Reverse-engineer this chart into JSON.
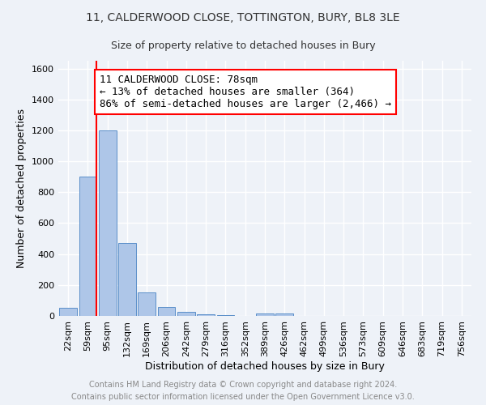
{
  "title_line1": "11, CALDERWOOD CLOSE, TOTTINGTON, BURY, BL8 3LE",
  "title_line2": "Size of property relative to detached houses in Bury",
  "xlabel": "Distribution of detached houses by size in Bury",
  "ylabel": "Number of detached properties",
  "categories": [
    "22sqm",
    "59sqm",
    "95sqm",
    "132sqm",
    "169sqm",
    "206sqm",
    "242sqm",
    "279sqm",
    "316sqm",
    "352sqm",
    "389sqm",
    "426sqm",
    "462sqm",
    "499sqm",
    "536sqm",
    "573sqm",
    "609sqm",
    "646sqm",
    "683sqm",
    "719sqm",
    "756sqm"
  ],
  "values": [
    50,
    900,
    1200,
    470,
    150,
    60,
    25,
    10,
    5,
    2,
    15,
    15,
    0,
    0,
    0,
    0,
    0,
    0,
    0,
    0,
    0
  ],
  "bar_color": "#aec6e8",
  "bar_edge_color": "#5b8fc9",
  "vline_color": "red",
  "annotation_text": "11 CALDERWOOD CLOSE: 78sqm\n← 13% of detached houses are smaller (364)\n86% of semi-detached houses are larger (2,466) →",
  "annotation_box_color": "white",
  "annotation_box_edge_color": "red",
  "ylim": [
    0,
    1650
  ],
  "yticks": [
    0,
    200,
    400,
    600,
    800,
    1000,
    1200,
    1400,
    1600
  ],
  "footer1": "Contains HM Land Registry data © Crown copyright and database right 2024.",
  "footer2": "Contains public sector information licensed under the Open Government Licence v3.0.",
  "background_color": "#eef2f8",
  "grid_color": "#ffffff",
  "title_fontsize": 10,
  "subtitle_fontsize": 9,
  "axis_label_fontsize": 9,
  "tick_fontsize": 8,
  "annotation_fontsize": 9,
  "footer_fontsize": 7
}
